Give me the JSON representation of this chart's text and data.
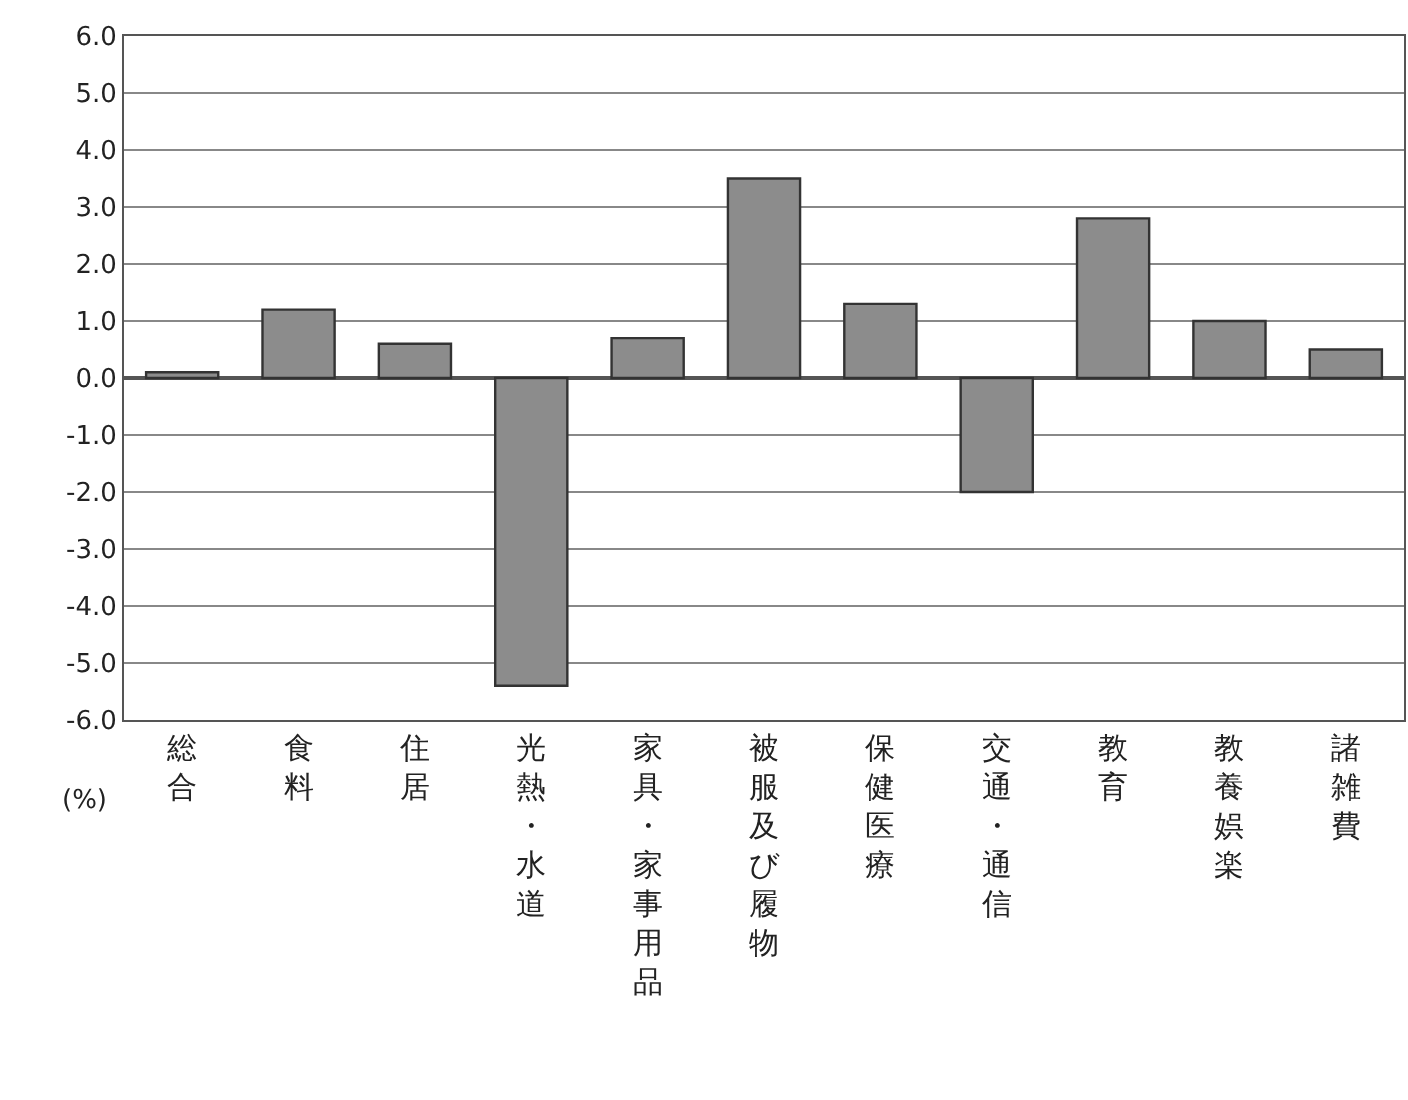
{
  "chart_data": {
    "type": "bar",
    "categories": [
      "総合",
      "食料",
      "住居",
      "光熱・水道",
      "家具・家事用品",
      "被服及び履物",
      "保健医療",
      "交通・通信",
      "教育",
      "教養娯楽",
      "諸雑費"
    ],
    "values": [
      0.1,
      1.2,
      0.6,
      -5.4,
      0.7,
      3.5,
      1.3,
      -2.0,
      2.8,
      1.0,
      0.5
    ],
    "color": "#8c8c8c",
    "ylim": [
      -6.0,
      6.0
    ],
    "yticks": [
      {
        "value": -6,
        "label": "-6.0"
      },
      {
        "value": -5,
        "label": "-5.0"
      },
      {
        "value": -4,
        "label": "-4.0"
      },
      {
        "value": -3,
        "label": "-3.0"
      },
      {
        "value": -2,
        "label": "-2.0"
      },
      {
        "value": -1,
        "label": "-1.0"
      },
      {
        "value": 0,
        "label": "0.0"
      },
      {
        "value": 1,
        "label": "1.0"
      },
      {
        "value": 2,
        "label": "2.0"
      },
      {
        "value": 3,
        "label": "3.0"
      },
      {
        "value": 4,
        "label": "4.0"
      },
      {
        "value": 5,
        "label": "5.0"
      },
      {
        "value": 6,
        "label": "6.0"
      }
    ],
    "grid": "y",
    "annotations": [
      "(%)"
    ]
  }
}
